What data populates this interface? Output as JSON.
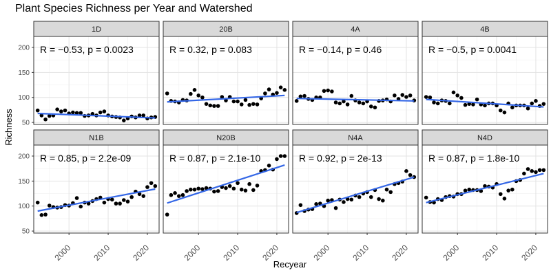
{
  "chart_data": {
    "type": "scatter",
    "title": "Plant Species Richness per Year and Watershed",
    "xlabel": "Recyear",
    "ylabel": "Richness",
    "xlim": [
      1991,
      2023
    ],
    "ylim": [
      46,
      222
    ],
    "x_ticks": [
      2000,
      2010,
      2020
    ],
    "y_ticks": [
      50,
      100,
      150,
      200
    ],
    "grid": true,
    "facet_layout": "2 rows x 4 columns, shared axes",
    "point_color": "#000000",
    "fit_line_color": "#3366e6",
    "strip_fill": "#d9d9d9",
    "panels": [
      {
        "label": "1D",
        "stat": "R = −0.53, p = 0.0023",
        "x": [
          1992,
          1993,
          1994,
          1995,
          1996,
          1997,
          1998,
          1999,
          2000,
          2001,
          2002,
          2003,
          2004,
          2005,
          2006,
          2007,
          2008,
          2009,
          2010,
          2011,
          2012,
          2013,
          2014,
          2015,
          2016,
          2017,
          2018,
          2019,
          2020,
          2021,
          2022
        ],
        "y": [
          74,
          64,
          56,
          63,
          64,
          76,
          72,
          74,
          68,
          70,
          69,
          69,
          63,
          64,
          67,
          64,
          70,
          72,
          64,
          62,
          61,
          60,
          54,
          58,
          62,
          60,
          64,
          64,
          58,
          60,
          61
        ],
        "fit": [
          [
            1992,
            68
          ],
          [
            2022,
            59
          ]
        ]
      },
      {
        "label": "20B",
        "stat": "R = 0.32, p = 0.083",
        "x": [
          1992,
          1993,
          1994,
          1995,
          1996,
          1997,
          1998,
          1999,
          2000,
          2001,
          2002,
          2003,
          2004,
          2005,
          2006,
          2007,
          2008,
          2009,
          2010,
          2011,
          2012,
          2013,
          2014,
          2015,
          2016,
          2017,
          2018,
          2019,
          2020,
          2021,
          2022
        ],
        "y": [
          108,
          93,
          92,
          90,
          95,
          94,
          107,
          115,
          104,
          100,
          87,
          84,
          83,
          83,
          101,
          94,
          101,
          92,
          92,
          86,
          95,
          85,
          87,
          86,
          98,
          108,
          116,
          106,
          109,
          120,
          115
        ],
        "fit": [
          [
            1992,
            91
          ],
          [
            2022,
            104
          ]
        ]
      },
      {
        "label": "4A",
        "stat": "R = −0.14, p = 0.46",
        "x": [
          1992,
          1993,
          1994,
          1995,
          1996,
          1997,
          1998,
          1999,
          2000,
          2001,
          2002,
          2003,
          2004,
          2005,
          2006,
          2007,
          2008,
          2009,
          2010,
          2011,
          2012,
          2013,
          2014,
          2015,
          2016,
          2017,
          2018,
          2019,
          2020,
          2021,
          2022
        ],
        "y": [
          93,
          102,
          103,
          97,
          95,
          100,
          100,
          113,
          114,
          112,
          90,
          88,
          92,
          86,
          103,
          94,
          90,
          88,
          92,
          82,
          80,
          93,
          94,
          96,
          92,
          104,
          97,
          105,
          101,
          104,
          94
        ],
        "fit": [
          [
            1992,
            98
          ],
          [
            2022,
            93
          ]
        ]
      },
      {
        "label": "4B",
        "stat": "R = −0.5, p = 0.0041",
        "x": [
          1992,
          1993,
          1994,
          1995,
          1996,
          1997,
          1998,
          1999,
          2000,
          2001,
          2002,
          2003,
          2004,
          2005,
          2006,
          2007,
          2008,
          2009,
          2010,
          2011,
          2012,
          2013,
          2014,
          2015,
          2016,
          2017,
          2018,
          2019,
          2020,
          2021,
          2022
        ],
        "y": [
          101,
          100,
          90,
          88,
          94,
          93,
          88,
          110,
          104,
          99,
          85,
          87,
          86,
          96,
          86,
          84,
          88,
          88,
          84,
          74,
          70,
          88,
          80,
          84,
          84,
          84,
          78,
          88,
          93,
          83,
          87
        ],
        "fit": [
          [
            1992,
            96
          ],
          [
            2022,
            81
          ]
        ]
      },
      {
        "label": "N1B",
        "stat": "R = 0.85, p = 2.2e-09",
        "x": [
          1992,
          1993,
          1994,
          1995,
          1996,
          1997,
          1998,
          1999,
          2000,
          2001,
          2002,
          2003,
          2004,
          2005,
          2006,
          2007,
          2008,
          2009,
          2010,
          2011,
          2012,
          2013,
          2014,
          2015,
          2016,
          2017,
          2018,
          2019,
          2020,
          2021,
          2022
        ],
        "y": [
          107,
          82,
          83,
          101,
          98,
          97,
          98,
          102,
          101,
          106,
          116,
          99,
          107,
          105,
          110,
          114,
          117,
          107,
          114,
          113,
          105,
          105,
          112,
          109,
          118,
          129,
          124,
          120,
          138,
          146,
          140
        ],
        "fit": [
          [
            1992,
            90
          ],
          [
            2022,
            134
          ]
        ]
      },
      {
        "label": "N20B",
        "stat": "R = 0.87, p = 2.1e-10",
        "x": [
          1992,
          1993,
          1994,
          1995,
          1996,
          1997,
          1998,
          1999,
          2000,
          2001,
          2002,
          2003,
          2004,
          2005,
          2006,
          2007,
          2008,
          2009,
          2010,
          2011,
          2012,
          2013,
          2014,
          2015,
          2016,
          2017,
          2018,
          2019,
          2020,
          2021,
          2022
        ],
        "y": [
          83,
          122,
          126,
          120,
          122,
          130,
          133,
          133,
          135,
          134,
          136,
          135,
          129,
          130,
          138,
          136,
          140,
          135,
          146,
          133,
          131,
          144,
          132,
          141,
          170,
          172,
          181,
          173,
          194,
          200,
          200
        ],
        "fit": [
          [
            1992,
            106
          ],
          [
            2022,
            182
          ]
        ]
      },
      {
        "label": "N4A",
        "stat": "R = 0.92, p = 2e-13",
        "x": [
          1992,
          1993,
          1994,
          1995,
          1996,
          1997,
          1998,
          1999,
          2000,
          2001,
          2002,
          2003,
          2004,
          2005,
          2006,
          2007,
          2008,
          2009,
          2010,
          2011,
          2012,
          2013,
          2014,
          2015,
          2016,
          2017,
          2018,
          2019,
          2020,
          2021,
          2022
        ],
        "y": [
          86,
          102,
          90,
          93,
          94,
          104,
          105,
          100,
          111,
          112,
          96,
          113,
          108,
          114,
          113,
          121,
          118,
          125,
          128,
          118,
          132,
          114,
          111,
          133,
          128,
          144,
          146,
          149,
          170,
          162,
          158
        ],
        "fit": [
          [
            1992,
            87
          ],
          [
            2022,
            158
          ]
        ]
      },
      {
        "label": "N4D",
        "stat": "R = 0.87, p = 1.8e-10",
        "x": [
          1992,
          1993,
          1994,
          1995,
          1996,
          1997,
          1998,
          1999,
          2000,
          2001,
          2002,
          2003,
          2004,
          2005,
          2006,
          2007,
          2008,
          2009,
          2010,
          2011,
          2012,
          2013,
          2014,
          2015,
          2016,
          2017,
          2018,
          2019,
          2020,
          2021,
          2022
        ],
        "y": [
          117,
          108,
          107,
          114,
          112,
          118,
          120,
          119,
          124,
          124,
          131,
          133,
          132,
          132,
          130,
          140,
          139,
          137,
          144,
          124,
          115,
          131,
          133,
          150,
          152,
          165,
          174,
          170,
          168,
          172,
          172
        ],
        "fit": [
          [
            1992,
            107
          ],
          [
            2022,
            165
          ]
        ]
      }
    ]
  }
}
